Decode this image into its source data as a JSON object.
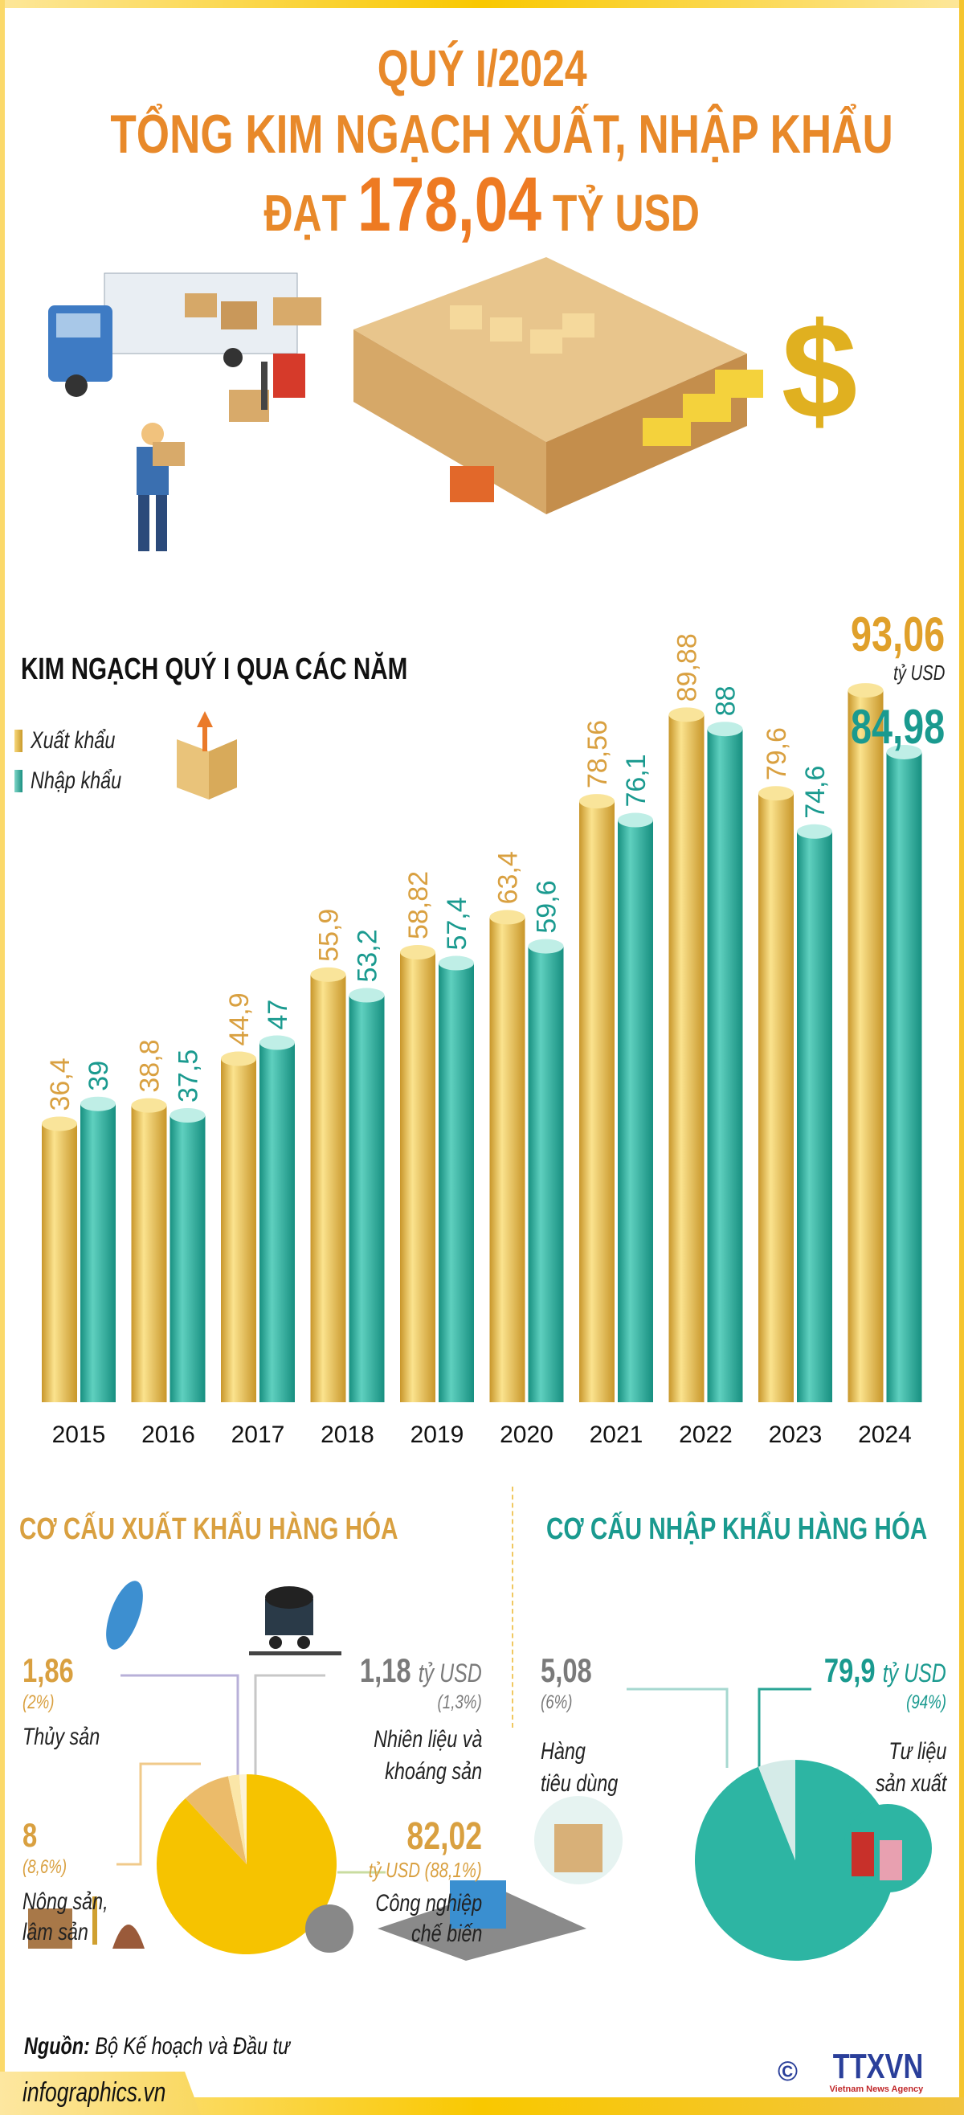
{
  "header": {
    "line1": "QUÝ I/2024",
    "line2": "TỔNG KIM NGẠCH XUẤT, NHẬP KHẨU",
    "line3_prefix": "ĐẠT",
    "line3_value": "178,04",
    "line3_suffix": "TỶ USD"
  },
  "colors": {
    "title": "#e8892a",
    "export": "#e8b830",
    "import": "#23a999",
    "export_label": "#d9a040",
    "import_label": "#1a9a8f",
    "frame": "#f9c800"
  },
  "chart_data": {
    "type": "bar",
    "title": "KIM NGẠCH QUÝ I  QUA CÁC NĂM",
    "categories": [
      "2015",
      "2016",
      "2017",
      "2018",
      "2019",
      "2020",
      "2021",
      "2022",
      "2023",
      "2024"
    ],
    "series": [
      {
        "name": "Xuất khẩu",
        "labels": [
          "36,4",
          "38,8",
          "44,9",
          "55,9",
          "58,82",
          "63,4",
          "78,56",
          "89,88",
          "79,6",
          "93,06"
        ],
        "values": [
          36.4,
          38.8,
          44.9,
          55.9,
          58.82,
          63.4,
          78.56,
          89.88,
          79.6,
          93.06
        ]
      },
      {
        "name": "Nhập khẩu",
        "labels": [
          "39",
          "37,5",
          "47",
          "53,2",
          "57,4",
          "59,6",
          "76,1",
          "88",
          "74,6",
          "84,98"
        ],
        "values": [
          39,
          37.5,
          47,
          53.2,
          57.4,
          59.6,
          76.1,
          88,
          74.6,
          84.98
        ]
      }
    ],
    "unit": "tỷ USD",
    "legend": "top-left"
  },
  "export_structure": {
    "heading": "CƠ CẤU XUẤT KHẨU HÀNG HÓA",
    "items": [
      {
        "value": "82,02",
        "unit_pct": "tỷ USD (88,1%)",
        "label1": "Công nghiệp",
        "label2": "chế biến",
        "pct": 88.1,
        "color": "#f6c300"
      },
      {
        "value": "8",
        "pct_label": "(8,6%)",
        "label1": "Nông sản,",
        "label2": "lâm sản",
        "pct": 8.6,
        "color": "#ebbb6a"
      },
      {
        "value": "1,86",
        "pct_label": "(2%)",
        "label1": "Thủy sản",
        "pct": 2,
        "color": "#fbe6a8"
      },
      {
        "value": "1,18",
        "unit": "tỷ USD",
        "pct_label": "(1,3%)",
        "label1": "Nhiên liệu và",
        "label2": "khoáng sản",
        "pct": 1.3,
        "color": "#fdf3d6"
      }
    ]
  },
  "import_structure": {
    "heading": "CƠ CẤU NHẬP KHẨU HÀNG HÓA",
    "items": [
      {
        "value": "79,9",
        "unit": "tỷ USD",
        "pct_label": "(94%)",
        "label1": "Tư liệu",
        "label2": "sản xuất",
        "pct": 94,
        "color": "#2db5a3"
      },
      {
        "value": "5,08",
        "pct_label": "(6%)",
        "label1": "Hàng",
        "label2": "tiêu dùng",
        "pct": 6,
        "color": "#d5ebe8"
      }
    ]
  },
  "footer": {
    "source_label": "Nguồn:",
    "source": "Bộ Kế hoạch và Đầu tư",
    "site": "infographics.vn",
    "logo": "TTXVN",
    "logo_sub": "Vietnam News Agency",
    "copyright": "©"
  }
}
